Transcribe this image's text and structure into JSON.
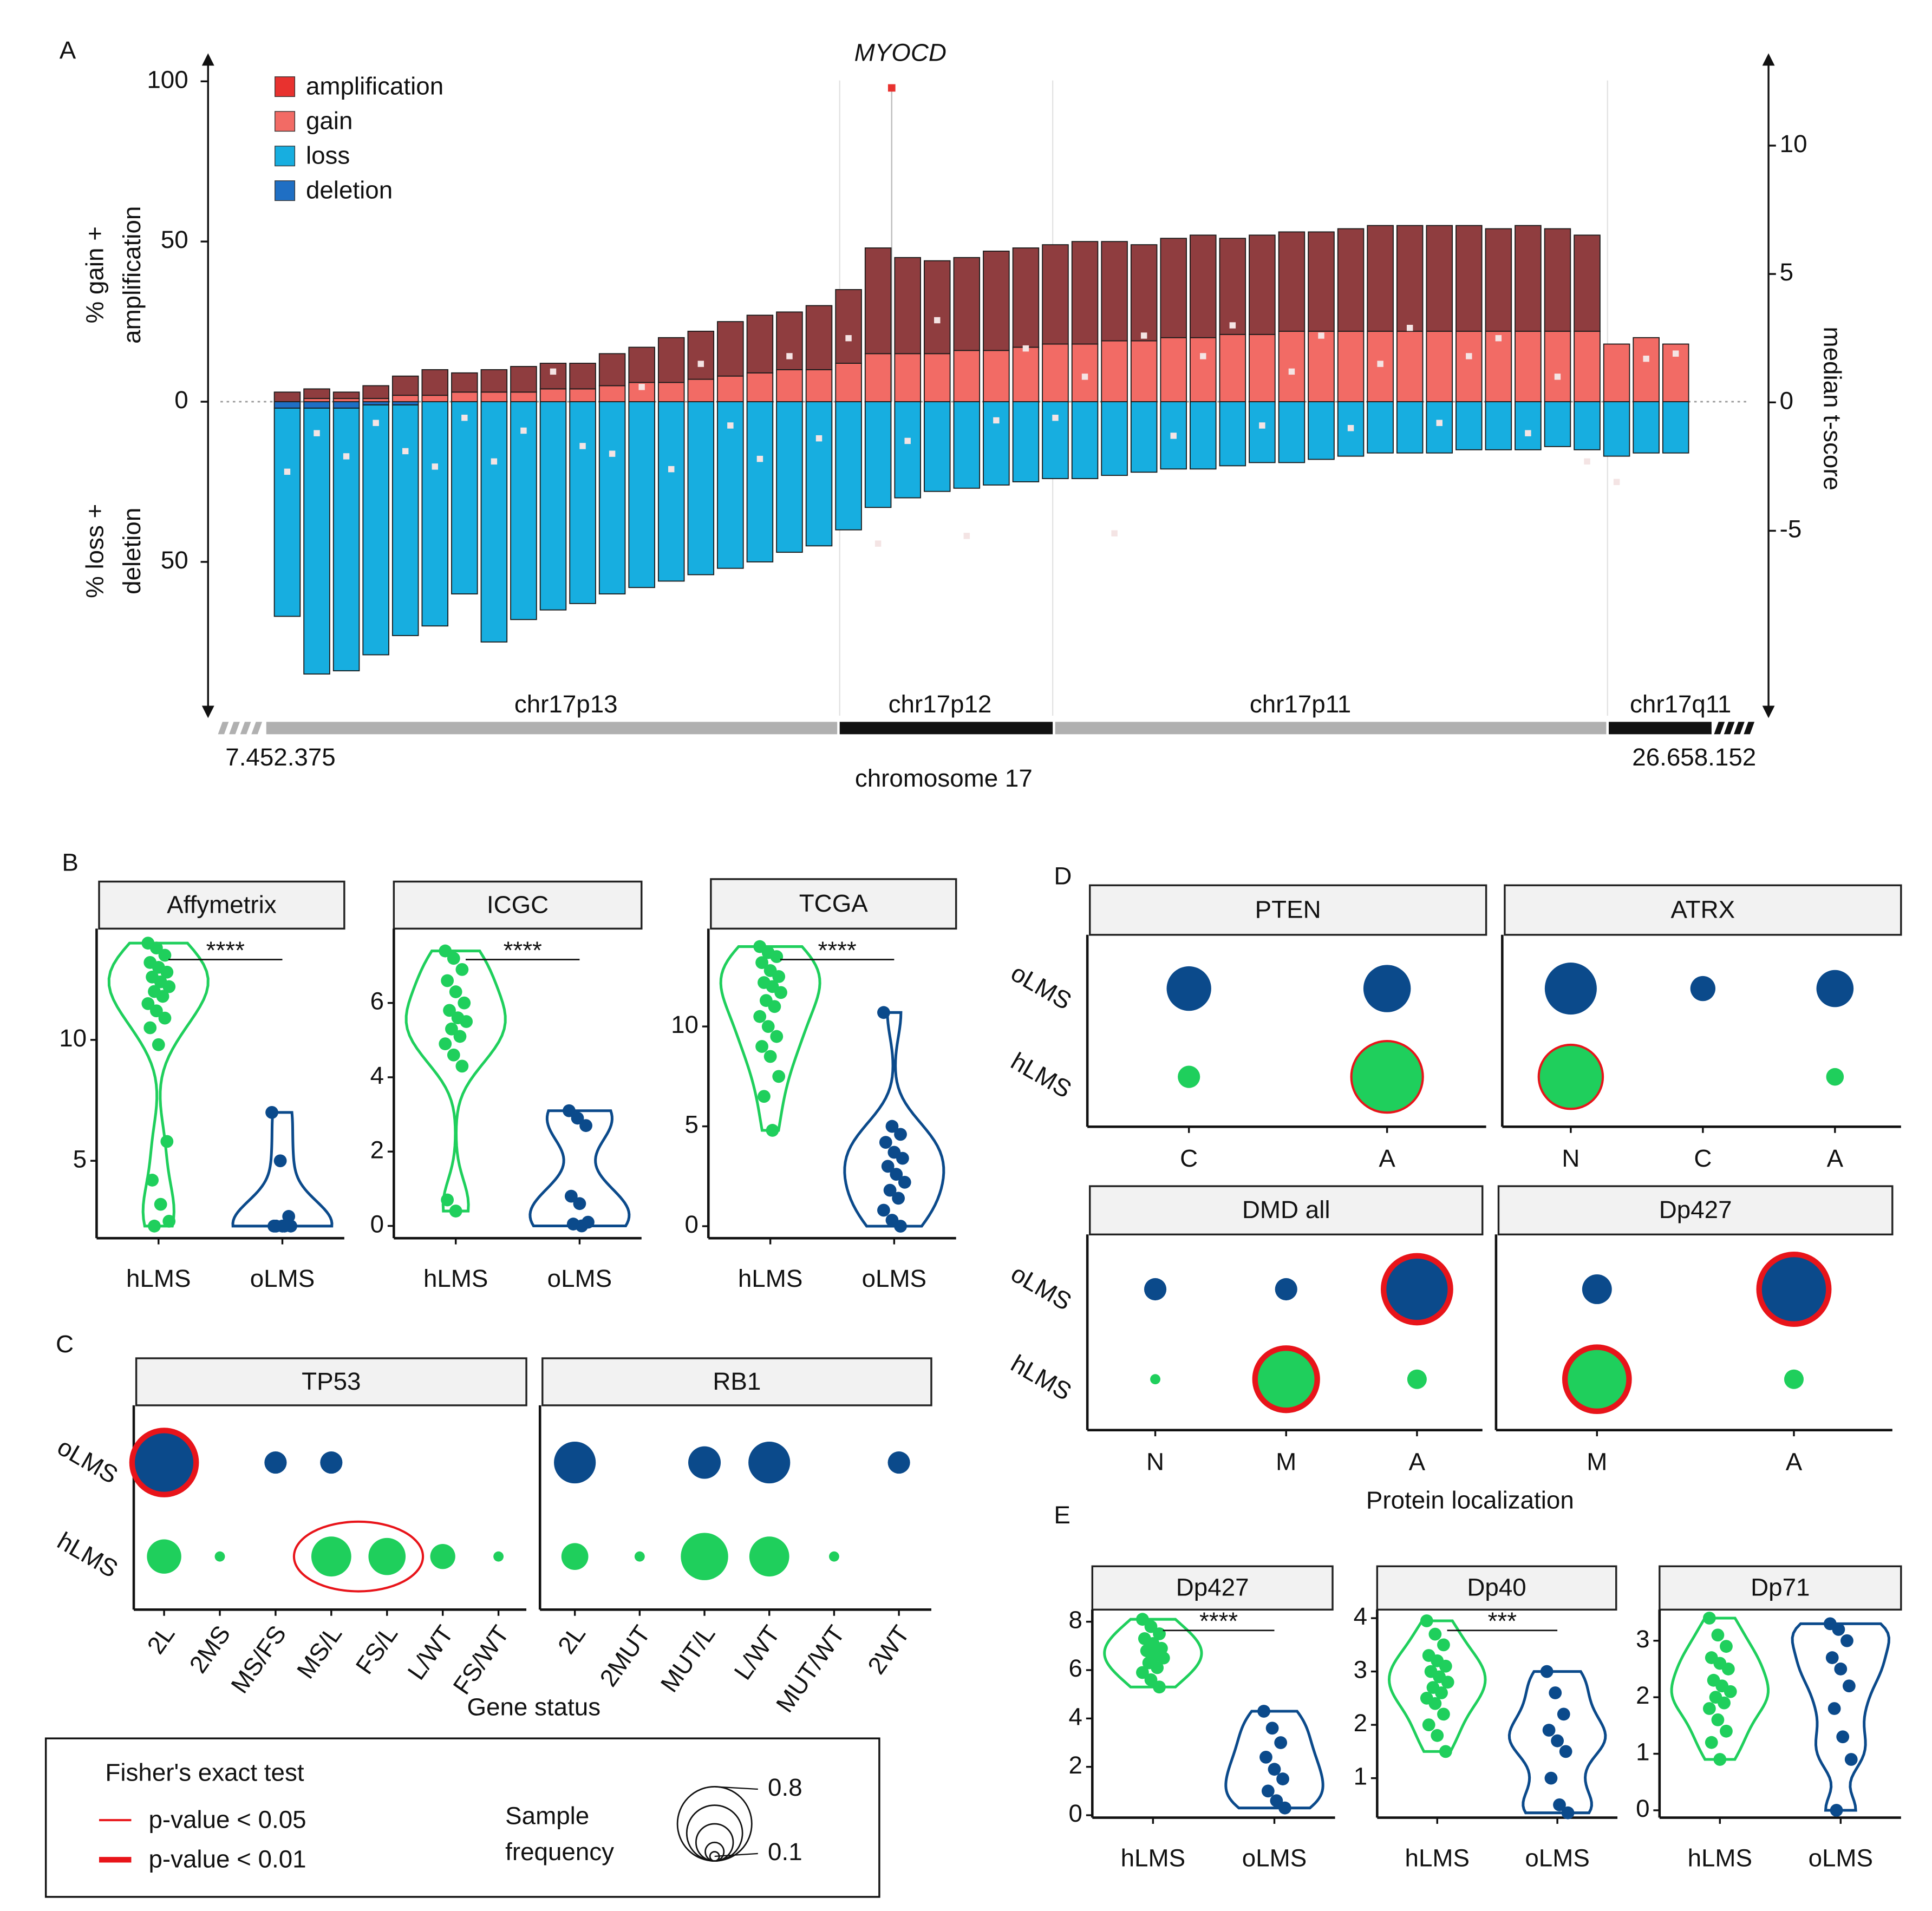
{
  "panel_labels": [
    "A",
    "B",
    "C",
    "D",
    "E"
  ],
  "legend": {
    "title": "Fisher's exact test",
    "items": [
      {
        "label": "p-value < 0.05",
        "p": 0.05
      },
      {
        "label": "p-value < 0.01",
        "p": 0.01
      }
    ],
    "size_label": [
      "Sample",
      "frequency"
    ],
    "sizes": [
      0.8,
      0.6,
      0.4,
      0.2,
      0.1
    ],
    "size_ticks": [
      0.8,
      0.1
    ]
  },
  "chart_data": [
    {
      "type": "bar",
      "title": "MYOCD",
      "series": [
        {
          "name": "amplification",
          "color": "#e8322f",
          "bar_color": "#8f3d3f",
          "values": [
            3,
            3,
            2,
            4,
            6,
            8,
            6,
            7,
            8,
            8,
            8,
            10,
            11,
            14,
            15,
            17,
            18,
            18,
            20,
            23,
            33,
            30,
            29,
            29,
            31,
            31,
            31,
            32,
            31,
            30,
            31,
            32,
            30,
            31,
            31,
            31,
            32,
            33,
            33,
            33,
            33,
            32,
            33,
            32,
            30,
            0,
            0,
            0
          ]
        },
        {
          "name": "gain",
          "color": "#f26b65",
          "values": [
            0,
            1,
            1,
            1,
            2,
            2,
            3,
            3,
            3,
            4,
            4,
            5,
            6,
            6,
            7,
            8,
            9,
            10,
            10,
            12,
            15,
            15,
            15,
            16,
            16,
            17,
            18,
            18,
            19,
            19,
            20,
            20,
            21,
            21,
            22,
            22,
            22,
            22,
            22,
            22,
            22,
            22,
            22,
            22,
            22,
            18,
            20,
            18
          ]
        },
        {
          "name": "loss",
          "color": "#17aee0",
          "values": [
            -65,
            -83,
            -82,
            -78,
            -72,
            -70,
            -60,
            -75,
            -68,
            -65,
            -63,
            -60,
            -58,
            -56,
            -54,
            -52,
            -50,
            -47,
            -45,
            -40,
            -33,
            -30,
            -28,
            -27,
            -26,
            -25,
            -24,
            -24,
            -23,
            -22,
            -21,
            -21,
            -20,
            -19,
            -19,
            -18,
            -17,
            -16,
            -16,
            -16,
            -15,
            -15,
            -15,
            -14,
            -15,
            -17,
            -16,
            -16
          ]
        },
        {
          "name": "deletion",
          "color": "#1f6fc4",
          "values": [
            -2,
            -2,
            -2,
            -1,
            -1,
            0,
            0,
            0,
            0,
            0,
            0,
            0,
            0,
            0,
            0,
            0,
            0,
            0,
            0,
            0,
            0,
            0,
            0,
            0,
            0,
            0,
            0,
            0,
            0,
            0,
            0,
            0,
            0,
            0,
            0,
            0,
            0,
            0,
            0,
            0,
            0,
            0,
            0,
            0,
            0,
            0,
            0,
            0
          ]
        }
      ],
      "tscore": {
        "color": "#f4e4e4",
        "axis": "y2",
        "values": [
          -2.7,
          -1.2,
          -2.1,
          -0.8,
          -1.9,
          -2.5,
          -0.6,
          -2.3,
          -1.1,
          1.2,
          -1.7,
          -2.0,
          0.6,
          -2.6,
          1.5,
          -0.9,
          -2.2,
          1.8,
          -1.4,
          2.5,
          -5.5,
          -1.5,
          3.2,
          -5.2,
          -0.7,
          2.1,
          -0.6,
          1.0,
          -5.1,
          2.6,
          -1.3,
          1.8,
          3.0,
          -0.9,
          1.2,
          2.6,
          -1.0,
          1.5,
          2.9,
          -0.8,
          1.8,
          2.5,
          -1.2,
          1.0,
          -2.3,
          -3.1,
          1.7,
          1.9
        ]
      },
      "ylabel": [
        "% gain +",
        "amplification"
      ],
      "ylabel2": [
        "% loss +",
        "deletion"
      ],
      "y2label": "median t-score",
      "xlabel": "chromosome 17",
      "bands": [
        "chr17p13",
        "chr17p12",
        "chr17p11",
        "chr17q11"
      ],
      "xlim": [
        7452375,
        26658152
      ],
      "xticks": [
        {
          "value": 7452375,
          "label": "7.452.375"
        },
        {
          "value": 26658152,
          "label": "26.658.152"
        }
      ],
      "ylim": [
        -98,
        108
      ],
      "yticks": [
        {
          "value": -50,
          "label": "50"
        },
        0,
        50,
        100
      ],
      "y2lim": [
        -12.2,
        13.5
      ],
      "y2ticks": [
        -5,
        0,
        5,
        10
      ]
    },
    {
      "type": "strip",
      "title": "Affymetrix",
      "annotation": "****",
      "ylim": [
        1.8,
        14.6
      ],
      "yticks": [
        5,
        10
      ],
      "series": [
        {
          "name": "hLMS",
          "color": "#1fcf5c",
          "values": [
            14,
            13.8,
            13.5,
            13.2,
            13,
            12.8,
            12.6,
            12.4,
            12.2,
            12,
            11.8,
            11.5,
            11.2,
            10.9,
            10.5,
            9.8,
            5.8,
            4.2,
            3.2,
            2.5,
            2.3
          ]
        },
        {
          "name": "oLMS",
          "color": "#0b4a8b",
          "values": [
            7,
            5,
            2.7,
            2.3,
            2.3,
            2.3,
            2.3,
            2.3
          ]
        }
      ]
    },
    {
      "type": "strip",
      "title": "ICGC",
      "annotation": "****",
      "ylim": [
        -0.33,
        8
      ],
      "yticks": [
        0,
        2,
        4,
        6
      ],
      "series": [
        {
          "name": "hLMS",
          "color": "#1fcf5c",
          "values": [
            7.4,
            7.2,
            6.9,
            6.6,
            6.3,
            6.0,
            5.8,
            5.6,
            5.5,
            5.3,
            5.1,
            4.9,
            4.6,
            4.3,
            0.7,
            0.4
          ]
        },
        {
          "name": "oLMS",
          "color": "#0b4a8b",
          "values": [
            3.1,
            2.9,
            2.7,
            0.8,
            0.6,
            0.1,
            0.05,
            0.0
          ]
        }
      ]
    },
    {
      "type": "strip",
      "title": "TCGA",
      "annotation": "****",
      "ylim": [
        -0.6,
        14.9
      ],
      "yticks": [
        0,
        5,
        10
      ],
      "series": [
        {
          "name": "hLMS",
          "color": "#1fcf5c",
          "values": [
            14,
            13.7,
            13.5,
            13.2,
            12.8,
            12.5,
            12.2,
            12,
            11.7,
            11.3,
            11,
            10.5,
            10,
            9.5,
            9,
            8.5,
            7.5,
            6.5,
            4.8
          ]
        },
        {
          "name": "oLMS",
          "color": "#0b4a8b",
          "values": [
            10.7,
            5,
            4.6,
            4.2,
            3.7,
            3.4,
            3,
            2.6,
            2.2,
            1.8,
            1.4,
            0.8,
            0.3,
            0
          ]
        }
      ]
    },
    {
      "type": "bubble",
      "xlabel": "Gene status",
      "facets": [
        {
          "title": "TP53",
          "categories": [
            "2L",
            "2MS",
            "MS/FS",
            "MS/L",
            "FS/L",
            "L/WT",
            "FS/WT"
          ],
          "series": [
            {
              "name": "oLMS",
              "color": "#0b4a8b",
              "values": [
                0.69,
                null,
                0.24,
                0.24,
                null,
                null,
                null
              ],
              "pvalues": [
                0.01,
                null,
                null,
                null,
                null,
                null,
                null
              ]
            },
            {
              "name": "hLMS",
              "color": "#1fcf5c",
              "values": [
                0.37,
                0.11,
                null,
                0.43,
                0.4,
                0.27,
                0.11
              ],
              "pvalues": [
                null,
                null,
                null,
                0.05,
                0.05,
                null,
                null
              ]
            }
          ]
        },
        {
          "title": "RB1",
          "categories": [
            "2L",
            "2MUT",
            "MUT/L",
            "L/WT",
            "MUT/WT",
            "2WT"
          ],
          "series": [
            {
              "name": "oLMS",
              "color": "#0b4a8b",
              "values": [
                0.45,
                null,
                0.35,
                0.45,
                null,
                0.24
              ],
              "pvalues": [
                null,
                null,
                null,
                null,
                null,
                null
              ]
            },
            {
              "name": "hLMS",
              "color": "#1fcf5c",
              "values": [
                0.29,
                0.11,
                0.51,
                0.43,
                0.11,
                null
              ],
              "pvalues": [
                null,
                null,
                null,
                null,
                null,
                null
              ]
            }
          ]
        }
      ]
    },
    {
      "type": "bubble",
      "facets": [
        {
          "title": "PTEN",
          "categories": [
            "C",
            "A"
          ],
          "series": [
            {
              "name": "oLMS",
              "color": "#0b4a8b",
              "values": [
                0.48,
                0.51
              ],
              "pvalues": [
                null,
                null
              ]
            },
            {
              "name": "hLMS",
              "color": "#1fcf5c",
              "values": [
                0.24,
                0.77
              ],
              "pvalues": [
                null,
                0.05
              ]
            }
          ]
        },
        {
          "title": "ATRX",
          "categories": [
            "N",
            "C",
            "A"
          ],
          "series": [
            {
              "name": "oLMS",
              "color": "#0b4a8b",
              "values": [
                0.56,
                0.27,
                0.4
              ],
              "pvalues": [
                null,
                null,
                null
              ]
            },
            {
              "name": "hLMS",
              "color": "#1fcf5c",
              "values": [
                0.69,
                null,
                0.19
              ],
              "pvalues": [
                0.05,
                null,
                null
              ]
            }
          ]
        }
      ]
    },
    {
      "type": "bubble",
      "xlabel": "Protein localization",
      "facets": [
        {
          "title": "DMD all",
          "categories": [
            "N",
            "M",
            "A"
          ],
          "series": [
            {
              "name": "oLMS",
              "color": "#0b4a8b",
              "values": [
                0.24,
                0.24,
                0.72
              ],
              "pvalues": [
                null,
                null,
                0.01
              ]
            },
            {
              "name": "hLMS",
              "color": "#1fcf5c",
              "values": [
                0.11,
                0.67,
                0.21
              ],
              "pvalues": [
                null,
                0.01,
                null
              ]
            }
          ]
        },
        {
          "title": "Dp427",
          "categories": [
            "M",
            "A"
          ],
          "series": [
            {
              "name": "oLMS",
              "color": "#0b4a8b",
              "values": [
                0.32,
                0.75
              ],
              "pvalues": [
                null,
                0.01
              ]
            },
            {
              "name": "hLMS",
              "color": "#1fcf5c",
              "values": [
                0.69,
                0.21
              ],
              "pvalues": [
                0.01,
                null
              ]
            }
          ]
        }
      ]
    },
    {
      "type": "strip",
      "title": "Dp427",
      "annotation": "****",
      "ylim": [
        -0.1,
        8.5
      ],
      "yticks": [
        0,
        2,
        4,
        6,
        8
      ],
      "series": [
        {
          "name": "hLMS",
          "color": "#1fcf5c",
          "values": [
            8.1,
            7.8,
            7.5,
            7.3,
            7.1,
            6.9,
            6.8,
            6.6,
            6.5,
            6.3,
            6.1,
            5.9,
            5.6,
            5.3
          ]
        },
        {
          "name": "oLMS",
          "color": "#0b4a8b",
          "values": [
            4.3,
            3.6,
            3.0,
            2.4,
            1.9,
            1.5,
            1.0,
            0.6,
            0.3
          ]
        }
      ]
    },
    {
      "type": "strip",
      "title": "Dp40",
      "annotation": "***",
      "ylim": [
        0.26,
        4.16
      ],
      "yticks": [
        1,
        2,
        3,
        4
      ],
      "series": [
        {
          "name": "hLMS",
          "color": "#1fcf5c",
          "values": [
            3.95,
            3.7,
            3.5,
            3.3,
            3.2,
            3.1,
            3.0,
            2.9,
            2.8,
            2.7,
            2.6,
            2.5,
            2.4,
            2.2,
            2.0,
            1.8,
            1.5
          ]
        },
        {
          "name": "oLMS",
          "color": "#0b4a8b",
          "values": [
            3.0,
            2.6,
            2.2,
            1.9,
            1.7,
            1.5,
            1.0,
            0.5,
            0.35
          ]
        }
      ]
    },
    {
      "type": "strip",
      "title": "Dp71",
      "ylim": [
        -0.13,
        3.55
      ],
      "yticks": [
        0,
        1,
        2,
        3
      ],
      "series": [
        {
          "name": "hLMS",
          "color": "#1fcf5c",
          "values": [
            3.4,
            3.1,
            2.9,
            2.7,
            2.6,
            2.5,
            2.3,
            2.2,
            2.1,
            2.0,
            1.9,
            1.8,
            1.6,
            1.4,
            1.2,
            0.9
          ]
        },
        {
          "name": "oLMS",
          "color": "#0b4a8b",
          "values": [
            3.3,
            3.2,
            3.0,
            2.7,
            2.5,
            2.2,
            1.8,
            1.3,
            0.9,
            0.0
          ]
        }
      ]
    }
  ]
}
